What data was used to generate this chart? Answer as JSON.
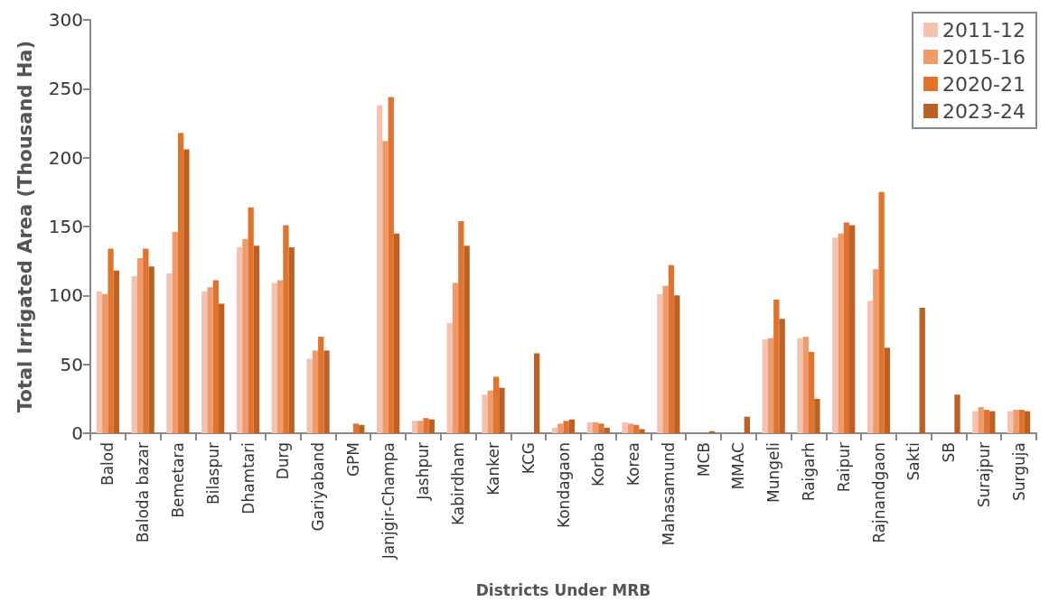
{
  "chart_data": {
    "type": "bar",
    "xlabel": "Districts Under MRB",
    "ylabel": "Total Irrigated Area (Thousand Ha)",
    "categories": [
      "Balod",
      "Baloda bazar",
      "Bemetara",
      "Bilaspur",
      "Dhamtari",
      "Durg",
      "Gariyaband",
      "GPM",
      "Janjgir-Champa",
      "Jashpur",
      "Kabirdham",
      "Kanker",
      "KCG",
      "Kondagaon",
      "Korba",
      "Korea",
      "Mahasamund",
      "MCB",
      "MMAC",
      "Mungeli",
      "Raigarh",
      "Raipur",
      "Rajnandgaon",
      "Sakti",
      "SB",
      "Surajpur",
      "Surguja"
    ],
    "series": [
      {
        "name": "2011-12",
        "color": "#f4c2ae",
        "values": [
          103,
          114,
          116,
          103,
          135,
          109,
          54,
          null,
          238,
          9,
          80,
          28,
          null,
          4,
          8,
          8,
          101,
          null,
          null,
          68,
          69,
          142,
          96,
          null,
          null,
          16,
          16
        ]
      },
      {
        "name": "2015-16",
        "color": "#f0996b",
        "values": [
          101,
          127,
          146,
          106,
          141,
          111,
          60,
          null,
          212,
          9,
          109,
          31,
          null,
          7,
          8,
          7,
          107,
          null,
          null,
          69,
          70,
          145,
          119,
          null,
          null,
          19,
          17
        ]
      },
      {
        "name": "2020-21",
        "color": "#e0742e",
        "values": [
          134,
          134,
          218,
          111,
          164,
          151,
          70,
          7,
          244,
          11,
          154,
          41,
          null,
          9,
          7,
          6,
          122,
          null,
          null,
          97,
          59,
          153,
          175,
          null,
          null,
          17,
          17
        ]
      },
      {
        "name": "2023-24",
        "color": "#bb6125",
        "values": [
          118,
          121,
          206,
          94,
          136,
          135,
          60,
          6,
          145,
          10,
          136,
          33,
          58,
          10,
          4,
          3,
          100,
          1.5,
          12,
          83,
          25,
          151,
          62,
          91,
          28,
          16,
          16
        ]
      }
    ],
    "ylim": [
      0,
      300
    ],
    "yticks": [
      0,
      50,
      100,
      150,
      200,
      250,
      300
    ],
    "grid": false,
    "legend": "top right"
  }
}
